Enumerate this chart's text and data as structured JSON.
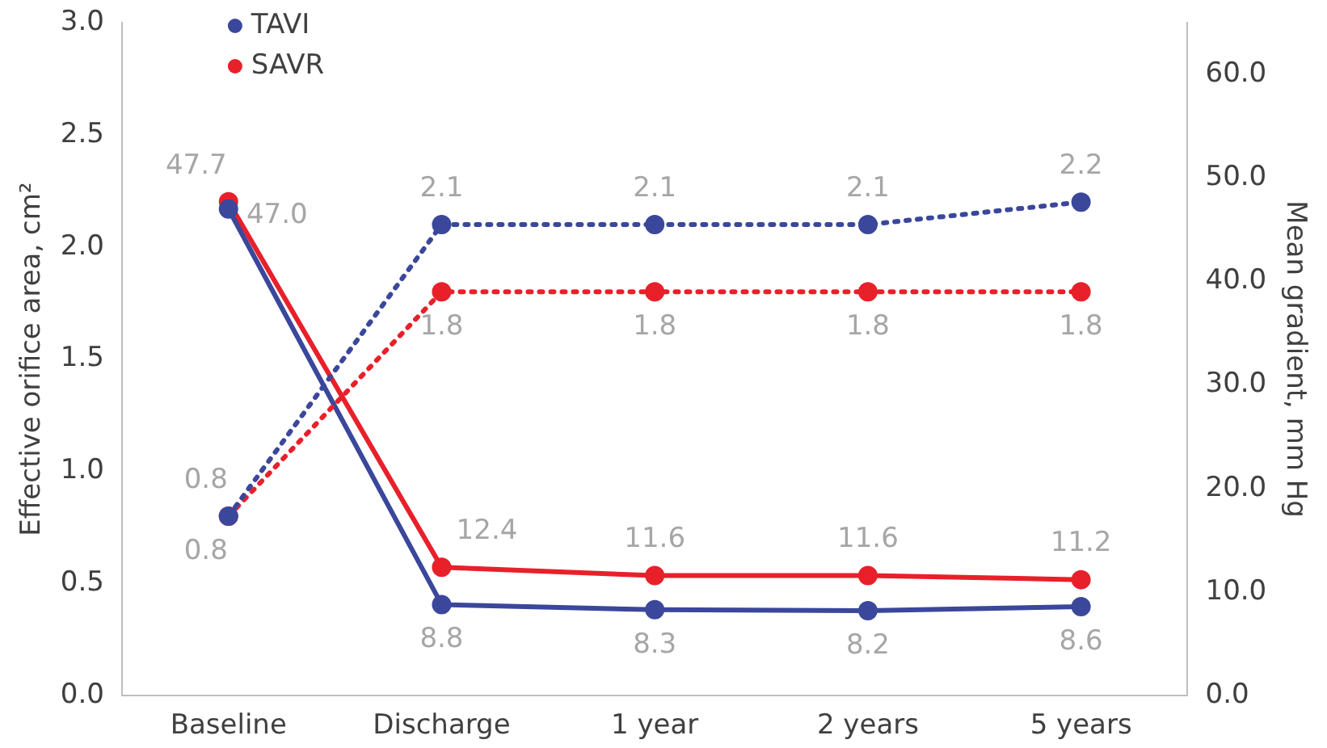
{
  "chart_data": {
    "type": "line",
    "categories": [
      "Baseline",
      "Discharge",
      "1 year",
      "2 years",
      "5 years"
    ],
    "ylabel": "Effective orifice area, cm²",
    "y2label": "Mean gradient, mm Hg",
    "ylim": [
      0,
      3.0
    ],
    "yticks": [
      {
        "value": 0,
        "label": "0.0"
      },
      0.5,
      {
        "value": 1,
        "label": "1.0"
      },
      1.5,
      {
        "value": 2,
        "label": "2.0"
      },
      2.5,
      {
        "value": 3,
        "label": "3.0"
      }
    ],
    "y2lim": [
      0,
      65
    ],
    "y2ticks": [
      {
        "value": 0,
        "label": "0.0"
      },
      {
        "value": 10,
        "label": "10.0"
      },
      {
        "value": 20,
        "label": "20.0"
      },
      {
        "value": 30,
        "label": "30.0"
      },
      {
        "value": 40,
        "label": "40.0"
      },
      {
        "value": 50,
        "label": "50.0"
      },
      {
        "value": 60,
        "label": "60.0"
      }
    ],
    "series": [
      {
        "name": "TAVI",
        "color": "#3a479b",
        "values": [
          0.8,
          2.1,
          2.1,
          2.1,
          2.2
        ],
        "line_style": "dotted"
      },
      {
        "name": "SAVR",
        "color": "#e8202a",
        "values": [
          0.8,
          1.8,
          1.8,
          1.8,
          1.8
        ],
        "line_style": "dotted"
      },
      {
        "color": "#3a479b",
        "values": [
          47.0,
          8.8,
          8.3,
          8.2,
          8.6
        ],
        "value_labels": [
          "47.0",
          "8.8",
          "8.3",
          "8.2",
          "8.6"
        ],
        "axis": "y2",
        "line_style": "solid"
      },
      {
        "color": "#e8202a",
        "values": [
          47.7,
          12.4,
          11.6,
          11.6,
          11.2
        ],
        "value_labels": [
          "47.7",
          "12.4",
          "11.6",
          "11.6",
          "11.2"
        ],
        "axis": "y2",
        "line_style": "solid"
      }
    ],
    "marker": "circle",
    "data_labels": true,
    "legend": "top left",
    "grid": false
  }
}
